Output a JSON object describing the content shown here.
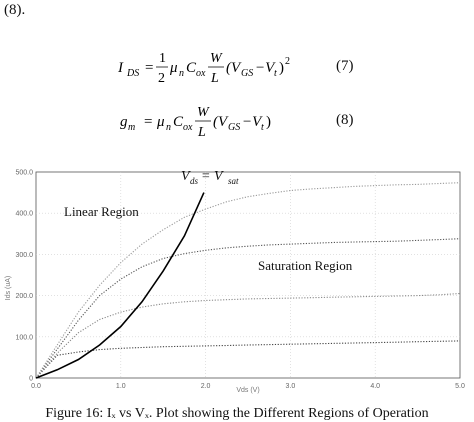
{
  "document": {
    "reference_text": "(8).",
    "equations": [
      {
        "id": "eq7",
        "lhs_symbol": "I",
        "lhs_subscript": "DS",
        "coefficient_numerator": "1",
        "coefficient_denominator": "2",
        "mu": "μ",
        "mu_subscript": "n",
        "cap": "C",
        "cap_subscript": "ox",
        "ratio_numerator": "W",
        "ratio_denominator": "L",
        "open_paren": "(V",
        "vgs_subscript": "GS",
        "minus_vt": "−V",
        "vt_subscript": "t",
        "close_paren": ")",
        "exponent": "2",
        "number": "(7)"
      },
      {
        "id": "eq8",
        "lhs_symbol": "g",
        "lhs_subscript": "m",
        "mu": "μ",
        "mu_subscript": "n",
        "cap": "C",
        "cap_subscript": "ox",
        "ratio_numerator": "W",
        "ratio_denominator": "L",
        "open_paren": "(V",
        "vgs_subscript": "GS",
        "minus_vt": "−V",
        "vt_subscript": "t",
        "close_paren": ")",
        "number": "(8)"
      }
    ],
    "caption": "Figure 16:  Iₓ  vs Vₓ.  Plot showing the Different Regions of Operation"
  },
  "chart_data": {
    "type": "line",
    "title": "",
    "xlabel": "Vds (V)",
    "ylabel": "Ids (uA)",
    "xlim": [
      0,
      5
    ],
    "ylim": [
      0,
      500
    ],
    "x_ticks": [
      "0.0",
      "1.0",
      "2.0",
      "3.0",
      "4.0",
      "5.0"
    ],
    "y_ticks": [
      "0",
      "100.0",
      "200.0",
      "300.0",
      "400.0",
      "500.0"
    ],
    "grid": true,
    "annotations": {
      "linear_region": "Linear Region",
      "saturation_region": "Saturation Region",
      "boundary_label": "V",
      "boundary_label_sub1": "ds",
      "boundary_label_eq": " = V",
      "boundary_label_sub2": "sat"
    },
    "x": [
      0,
      0.25,
      0.5,
      0.75,
      1.0,
      1.25,
      1.5,
      1.75,
      2.0,
      2.25,
      2.5,
      2.75,
      3.0,
      3.25,
      3.5,
      3.75,
      4.0,
      4.25,
      4.5,
      4.75,
      5.0
    ],
    "series": [
      {
        "values": [
          0,
          55,
          63,
          69,
          72,
          74,
          76,
          77,
          78,
          79,
          80,
          81,
          82,
          83,
          84,
          85,
          86,
          87,
          88,
          89,
          90
        ],
        "color": "#444444",
        "style": "dotted"
      },
      {
        "values": [
          0,
          60,
          110,
          142,
          160,
          172,
          180,
          185,
          188,
          190,
          192,
          193,
          194,
          195,
          196,
          197,
          198,
          199,
          200,
          202,
          205
        ],
        "color": "#8a8a8a",
        "style": "dotted"
      },
      {
        "values": [
          0,
          70,
          140,
          200,
          240,
          270,
          290,
          302,
          310,
          316,
          320,
          323,
          325,
          327,
          329,
          330,
          331,
          332,
          334,
          336,
          338
        ],
        "color": "#555555",
        "style": "dotted"
      },
      {
        "values": [
          0,
          80,
          160,
          225,
          280,
          325,
          360,
          390,
          410,
          428,
          440,
          448,
          455,
          459,
          462,
          465,
          467,
          469,
          470,
          472,
          474
        ],
        "color": "#9a9a9a",
        "style": "dotted"
      }
    ],
    "boundary": {
      "x": [
        0,
        0.25,
        0.5,
        0.75,
        1.0,
        1.25,
        1.5,
        1.75,
        1.98
      ],
      "values": [
        0,
        20,
        45,
        80,
        125,
        185,
        260,
        345,
        450
      ],
      "color": "#000000"
    }
  }
}
